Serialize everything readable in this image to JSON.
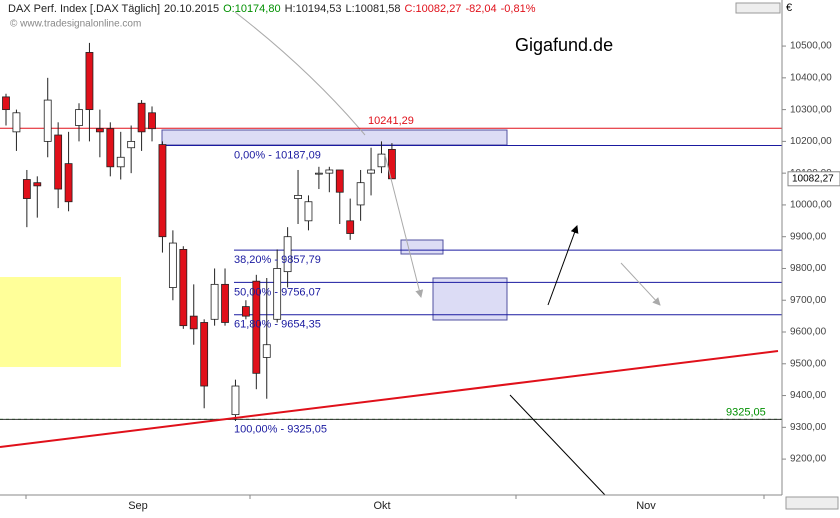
{
  "chart_data": {
    "type": "candlestick",
    "header": {
      "symbol": "DAX Perf. Index [.DAX Täglich]",
      "date": "20.10.2015",
      "open": "O:10174,80",
      "high": "H:10194,53",
      "low": "L:10081,58",
      "close": "C:10082,27",
      "change": "-82,04",
      "change_pct": "-0,81%"
    },
    "watermark": "© www.tradesignalonline.com",
    "brand": "Gigafund.de",
    "currency": "€",
    "up_color": "#ffffff",
    "down_color": "#e0101a",
    "open": [
      10340,
      10230,
      10080,
      10070,
      10200,
      10220,
      10130,
      10250,
      10480,
      10240,
      10240,
      10120,
      10180,
      10320,
      10290,
      10190,
      9740,
      9860,
      9650,
      9630,
      9640,
      9750,
      9340,
      9680,
      9760,
      9520,
      9640,
      9790,
      10020,
      9950,
      10100,
      10100,
      10110,
      9950,
      10000,
      10100,
      10120,
      10174.8
    ],
    "high": [
      10350,
      10300,
      10110,
      10090,
      10400,
      10260,
      10230,
      10320,
      10510,
      10300,
      10260,
      10230,
      10250,
      10330,
      10310,
      10200,
      9920,
      9870,
      9750,
      9640,
      9800,
      9800,
      9450,
      9700,
      9780,
      9770,
      9860,
      9930,
      10110,
      10030,
      10120,
      10120,
      10110,
      10020,
      10110,
      10180,
      10200,
      10194.53
    ],
    "low": [
      10250,
      10170,
      9930,
      9960,
      10150,
      9990,
      9980,
      10200,
      10200,
      10150,
      10090,
      10080,
      10100,
      10170,
      10200,
      9850,
      9700,
      9610,
      9560,
      9360,
      9620,
      9620,
      9320,
      9640,
      9420,
      9390,
      9630,
      9740,
      9940,
      9920,
      10050,
      10040,
      9940,
      9890,
      9950,
      10030,
      10100,
      10081.58
    ],
    "close": [
      10300,
      10290,
      10020,
      10060,
      10330,
      10050,
      10010,
      10300,
      10300,
      10230,
      10120,
      10150,
      10200,
      10230,
      10240,
      9900,
      9880,
      9620,
      9610,
      9430,
      9750,
      9630,
      9430,
      9650,
      9470,
      9560,
      9800,
      9900,
      10030,
      10010,
      10100,
      10110,
      10040,
      9910,
      10070,
      10110,
      10160,
      10082.27
    ],
    "x_labels": [
      "Sep",
      "Okt",
      "Nov"
    ],
    "ylim": [
      9087,
      10645
    ],
    "yticks": [
      {
        "value": 9200,
        "label": "9200,00"
      },
      {
        "value": 9300,
        "label": "9300,00"
      },
      {
        "value": 9400,
        "label": "9400,00"
      },
      {
        "value": 9500,
        "label": "9500,00"
      },
      {
        "value": 9600,
        "label": "9600,00"
      },
      {
        "value": 9700,
        "label": "9700,00"
      },
      {
        "value": 9800,
        "label": "9800,00"
      },
      {
        "value": 9900,
        "label": "9900,00"
      },
      {
        "value": 10000,
        "label": "10000,00"
      },
      {
        "value": 10100,
        "label": "10100,00"
      },
      {
        "value": 10200,
        "label": "10200,00"
      },
      {
        "value": 10300,
        "label": "10300,00"
      },
      {
        "value": 10400,
        "label": "10400,00"
      },
      {
        "value": 10500,
        "label": "10500,00"
      }
    ],
    "fib_levels": [
      {
        "value": 10187.09,
        "label": "0,00% - 10187,09"
      },
      {
        "value": 9857.79,
        "label": "38,20% - 9857,79"
      },
      {
        "value": 9756.07,
        "label": "50,00% - 9756,07"
      },
      {
        "value": 9654.35,
        "label": "61,80% - 9654,35"
      },
      {
        "value": 9325.05,
        "label": "100,00% - 9325,05"
      }
    ],
    "resistance": {
      "value": 10241.29,
      "label": "10241,29"
    },
    "support": {
      "value": 9325.05,
      "label": "9325,05"
    },
    "last_price": {
      "value": 10082.27,
      "label": "10082,27"
    }
  }
}
